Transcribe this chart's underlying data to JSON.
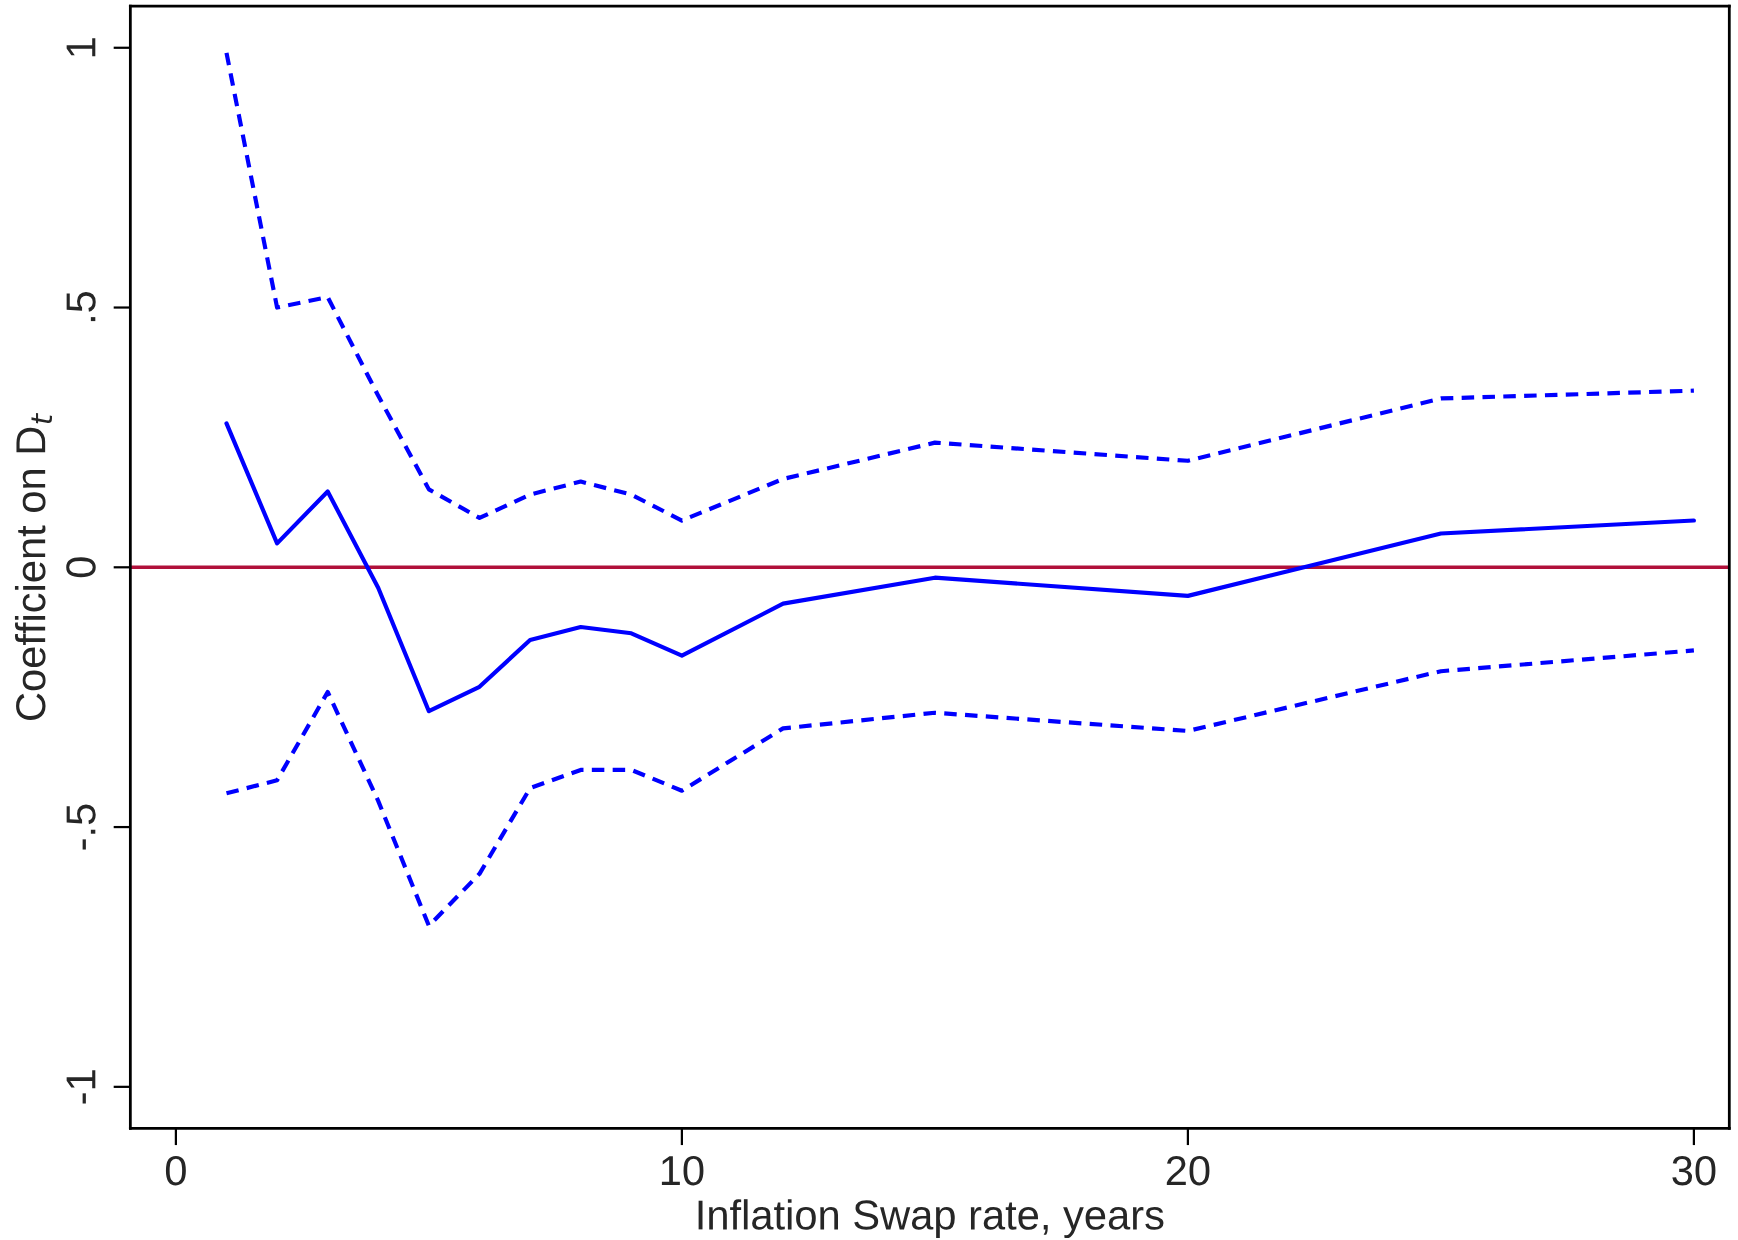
{
  "chart_data": {
    "type": "line",
    "xlabel": "Inflation Swap rate, years",
    "ylabel": "Coefficient on D$_{t}$",
    "x": [
      1,
      2,
      3,
      4,
      5,
      6,
      7,
      8,
      9,
      10,
      12,
      15,
      20,
      25,
      30
    ],
    "series": [
      {
        "color": "#0000ff",
        "line_style": "solid",
        "values": [
          0.277,
          0.046,
          0.146,
          -0.04,
          -0.277,
          -0.23,
          -0.14,
          -0.115,
          -0.127,
          -0.17,
          -0.07,
          -0.02,
          -0.055,
          0.065,
          0.09
        ]
      },
      {
        "color": "#0000ff",
        "line_style": "dashed",
        "values": [
          0.99,
          0.5,
          0.52,
          0.33,
          0.15,
          0.095,
          0.14,
          0.165,
          0.14,
          0.09,
          0.17,
          0.24,
          0.205,
          0.325,
          0.34
        ]
      },
      {
        "color": "#0000ff",
        "line_style": "dashed",
        "values": [
          -0.435,
          -0.41,
          -0.24,
          -0.45,
          -0.69,
          -0.59,
          -0.425,
          -0.39,
          -0.39,
          -0.43,
          -0.31,
          -0.28,
          -0.315,
          -0.2,
          -0.16
        ]
      }
    ],
    "xlim": [
      -0.9,
      30.7
    ],
    "ylim": [
      -1.08,
      1.08
    ],
    "xticks": [
      0,
      10,
      20,
      30
    ],
    "yticks": [
      {
        "value": -1,
        "label": "-1"
      },
      {
        "value": -0.5,
        "label": "-.5"
      },
      {
        "value": 0,
        "label": "0"
      },
      {
        "value": 0.5,
        "label": ".5"
      },
      {
        "value": 1,
        "label": "1"
      }
    ],
    "ref_lines": [
      {
        "axis": "y",
        "value": 0,
        "color": "#b0103a",
        "line_style": "solid"
      }
    ],
    "grid": false,
    "legend": false
  }
}
